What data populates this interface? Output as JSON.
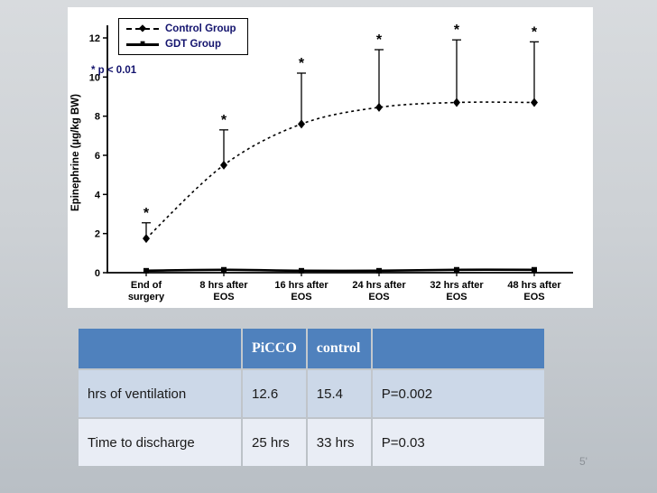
{
  "colors": {
    "header_blue": "#4F81BD",
    "row_band_dark": "#CCD8E8",
    "row_band_light": "#E9EDF5",
    "chart_ink": "#000000",
    "legend_text": "#14146E"
  },
  "slide": {
    "page_number": "5'"
  },
  "chart_data": {
    "type": "line",
    "title": "",
    "xlabel": "",
    "ylabel": "Epinephrine (µg/kg BW)",
    "ylim": [
      0,
      12
    ],
    "yticks": [
      0,
      2,
      4,
      6,
      8,
      10,
      12
    ],
    "grid": false,
    "legend_position": "top-left",
    "note": "* p < 0.01",
    "categories": [
      "End of\nsurgery",
      "8 hrs after\nEOS",
      "16 hrs after\nEOS",
      "24 hrs after\nEOS",
      "32 hrs after\nEOS",
      "48 hrs after\nEOS"
    ],
    "series": [
      {
        "name": "Control Group",
        "marker": "diamond",
        "line": "dashed",
        "values": [
          1.75,
          5.5,
          7.6,
          8.45,
          8.7,
          8.7
        ],
        "error_upper": [
          2.55,
          7.3,
          10.2,
          11.4,
          11.9,
          11.8
        ],
        "significant": [
          true,
          true,
          true,
          true,
          true,
          true
        ]
      },
      {
        "name": "GDT Group",
        "marker": "square",
        "line": "solid",
        "values": [
          0.1,
          0.15,
          0.1,
          0.1,
          0.15,
          0.15
        ]
      }
    ]
  },
  "table": {
    "header": [
      "",
      "PiCCO",
      "control",
      ""
    ],
    "rows": [
      [
        "hrs of ventilation",
        "12.6",
        "15.4",
        "P=0.002"
      ],
      [
        "Time to discharge",
        "25 hrs",
        "33 hrs",
        "P=0.03"
      ]
    ]
  }
}
